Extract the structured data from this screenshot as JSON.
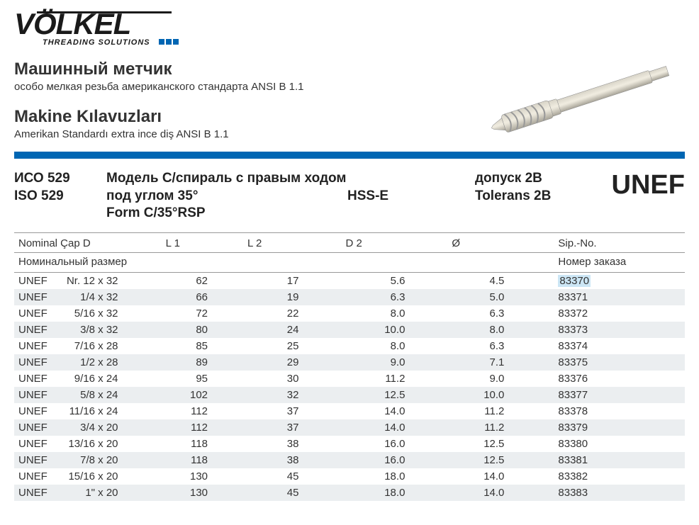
{
  "logo": {
    "brand": "VÖLKEL",
    "tagline": "THREADING SOLUTIONS",
    "accent_color": "#0066b3"
  },
  "titles": {
    "ru_title": "Машинный метчик",
    "ru_sub": "особо мелкая резьба американского стандарта ANSI B 1.1",
    "tr_title": "Makine Kılavuzları",
    "tr_sub": "Amerikan Standardı extra ince diş ANSI B 1.1"
  },
  "spec": {
    "iso_ru": "ИСО 529",
    "iso_en": "ISO 529",
    "model_ru": "Модель C/спираль с правым ходом под углом 35°",
    "model_en": "Form C/35°RSP",
    "material": "HSS-E",
    "tol_ru": "допуск 2B",
    "tol_en": "Tolerans 2B",
    "thread": "UNEF"
  },
  "table": {
    "headers": {
      "nom1": "Nominal Çap D",
      "nom2": "Номинальный размер",
      "l1": "L 1",
      "l2": "L 2",
      "d2": "D 2",
      "dia": "Ø",
      "sip1": "Sip.-No.",
      "sip2": "Номер заказа"
    },
    "rows": [
      {
        "nom_prefix": "UNEF",
        "nom_size": "Nr. 12",
        "nom_pitch": "x 32",
        "l1": "62",
        "l2": "17",
        "d2": "5.6",
        "dia": "4.5",
        "sip": "83370",
        "hl": true
      },
      {
        "nom_prefix": "UNEF",
        "nom_size": "1/4",
        "nom_pitch": "x 32",
        "l1": "66",
        "l2": "19",
        "d2": "6.3",
        "dia": "5.0",
        "sip": "83371"
      },
      {
        "nom_prefix": "UNEF",
        "nom_size": "5/16",
        "nom_pitch": "x 32",
        "l1": "72",
        "l2": "22",
        "d2": "8.0",
        "dia": "6.3",
        "sip": "83372"
      },
      {
        "nom_prefix": "UNEF",
        "nom_size": "3/8",
        "nom_pitch": "x 32",
        "l1": "80",
        "l2": "24",
        "d2": "10.0",
        "dia": "8.0",
        "sip": "83373"
      },
      {
        "nom_prefix": "UNEF",
        "nom_size": "7/16",
        "nom_pitch": "x 28",
        "l1": "85",
        "l2": "25",
        "d2": "8.0",
        "dia": "6.3",
        "sip": "83374"
      },
      {
        "nom_prefix": "UNEF",
        "nom_size": "1/2",
        "nom_pitch": "x 28",
        "l1": "89",
        "l2": "29",
        "d2": "9.0",
        "dia": "7.1",
        "sip": "83375"
      },
      {
        "nom_prefix": "UNEF",
        "nom_size": "9/16",
        "nom_pitch": "x 24",
        "l1": "95",
        "l2": "30",
        "d2": "11.2",
        "dia": "9.0",
        "sip": "83376"
      },
      {
        "nom_prefix": "UNEF",
        "nom_size": "5/8",
        "nom_pitch": "x 24",
        "l1": "102",
        "l2": "32",
        "d2": "12.5",
        "dia": "10.0",
        "sip": "83377"
      },
      {
        "nom_prefix": "UNEF",
        "nom_size": "11/16",
        "nom_pitch": "x 24",
        "l1": "112",
        "l2": "37",
        "d2": "14.0",
        "dia": "11.2",
        "sip": "83378"
      },
      {
        "nom_prefix": "UNEF",
        "nom_size": "3/4",
        "nom_pitch": "x 20",
        "l1": "112",
        "l2": "37",
        "d2": "14.0",
        "dia": "11.2",
        "sip": "83379"
      },
      {
        "nom_prefix": "UNEF",
        "nom_size": "13/16",
        "nom_pitch": "x 20",
        "l1": "118",
        "l2": "38",
        "d2": "16.0",
        "dia": "12.5",
        "sip": "83380"
      },
      {
        "nom_prefix": "UNEF",
        "nom_size": "7/8",
        "nom_pitch": "x 20",
        "l1": "118",
        "l2": "38",
        "d2": "16.0",
        "dia": "12.5",
        "sip": "83381"
      },
      {
        "nom_prefix": "UNEF",
        "nom_size": "15/16",
        "nom_pitch": "x 20",
        "l1": "130",
        "l2": "45",
        "d2": "18.0",
        "dia": "14.0",
        "sip": "83382"
      },
      {
        "nom_prefix": "UNEF",
        "nom_size": "1\"",
        "nom_pitch": "x 20",
        "l1": "130",
        "l2": "45",
        "d2": "18.0",
        "dia": "14.0",
        "sip": "83383"
      }
    ]
  },
  "colors": {
    "blue_bar": "#0066b3",
    "row_stripe": "#ebeef0",
    "highlight": "#cce6f5",
    "text": "#333333"
  }
}
